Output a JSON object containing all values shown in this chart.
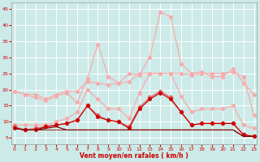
{
  "x": [
    0,
    1,
    2,
    3,
    4,
    5,
    6,
    7,
    8,
    9,
    10,
    11,
    12,
    13,
    14,
    15,
    16,
    17,
    18,
    19,
    20,
    21,
    22,
    23
  ],
  "rafales_light1": [
    19.5,
    18.5,
    17.5,
    16.5,
    18.0,
    19.0,
    16.0,
    23.5,
    34.0,
    24.0,
    22.0,
    25.0,
    24.5,
    30.0,
    44.0,
    42.5,
    28.0,
    25.0,
    25.5,
    24.0,
    24.0,
    26.5,
    22.0,
    18.5
  ],
  "moy_light1": [
    19.5,
    18.5,
    18.5,
    17.0,
    18.5,
    19.5,
    19.5,
    22.5,
    22.0,
    21.5,
    22.0,
    22.5,
    25.0,
    25.0,
    25.0,
    25.0,
    25.0,
    24.5,
    25.0,
    25.0,
    25.0,
    25.5,
    24.0,
    12.0
  ],
  "rafales_light2": [
    9.0,
    9.0,
    9.0,
    9.0,
    10.0,
    11.0,
    13.0,
    20.0,
    17.0,
    14.0,
    14.0,
    11.0,
    19.0,
    25.0,
    25.0,
    25.0,
    18.0,
    13.0,
    14.0,
    14.0,
    14.0,
    15.0,
    9.0,
    8.0
  ],
  "moy_med": [
    8.5,
    7.5,
    8.0,
    8.5,
    9.0,
    9.5,
    10.5,
    15.0,
    12.0,
    10.5,
    10.0,
    8.5,
    14.5,
    17.5,
    19.5,
    17.5,
    13.0,
    9.0,
    9.5,
    9.5,
    9.5,
    9.5,
    6.0,
    5.5
  ],
  "moy_dark1": [
    8.0,
    7.5,
    7.5,
    8.5,
    9.0,
    9.5,
    10.5,
    15.0,
    11.5,
    10.5,
    10.0,
    8.0,
    14.0,
    17.0,
    19.0,
    17.0,
    13.0,
    9.0,
    9.5,
    9.5,
    9.5,
    9.5,
    6.0,
    5.5
  ],
  "flat_dark": [
    8.0,
    7.5,
    7.5,
    8.0,
    8.5,
    7.5,
    7.5,
    7.5,
    7.5,
    7.5,
    7.5,
    7.5,
    7.5,
    7.5,
    7.5,
    7.5,
    7.5,
    7.5,
    7.5,
    7.5,
    7.5,
    7.5,
    5.5,
    5.5
  ],
  "bottom_dark": [
    8.0,
    7.5,
    7.5,
    7.5,
    7.5,
    7.5,
    7.5,
    7.5,
    7.5,
    7.5,
    7.5,
    7.5,
    7.5,
    7.5,
    7.5,
    7.5,
    7.5,
    7.5,
    7.5,
    7.5,
    7.5,
    7.5,
    5.5,
    5.5
  ],
  "color_light": "#f8aaaa",
  "color_med": "#e06060",
  "color_dark": "#cc0000",
  "color_darkest": "#880000",
  "bg_color": "#cceae8",
  "grid_color": "#b8dada",
  "tick_color": "#cc0000",
  "xlabel": "Vent moyen/en rafales ( km/h )",
  "ylim": [
    3,
    47
  ],
  "xlim": [
    -0.3,
    23.3
  ],
  "yticks": [
    5,
    10,
    15,
    20,
    25,
    30,
    35,
    40,
    45
  ],
  "xticks": [
    0,
    1,
    2,
    3,
    4,
    5,
    6,
    7,
    8,
    9,
    10,
    11,
    12,
    13,
    14,
    15,
    16,
    17,
    18,
    19,
    20,
    21,
    22,
    23
  ]
}
